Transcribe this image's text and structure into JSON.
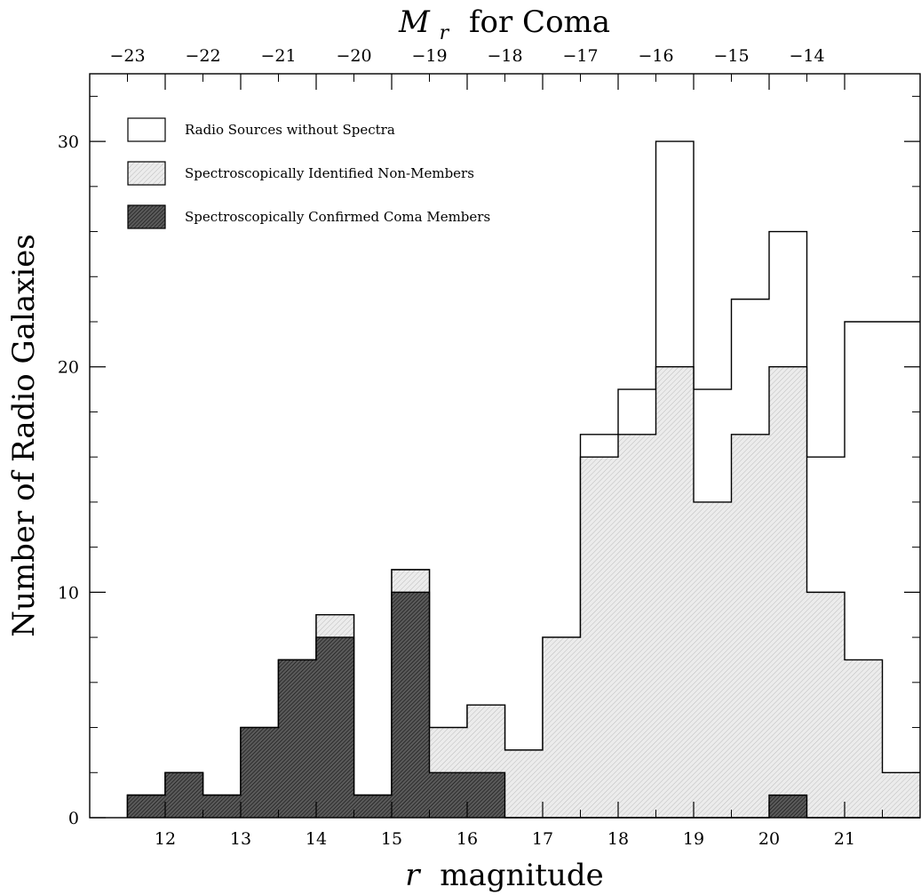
{
  "chart_data": {
    "type": "histogram",
    "xlabel_italic": "r",
    "xlabel_rest": "magnitude",
    "ylabel": "Number of Radio Galaxies",
    "top_label_italic": "M",
    "top_label_sub": "r",
    "top_label_rest": "for Coma",
    "xlim": [
      11,
      22
    ],
    "ylim": [
      0,
      33
    ],
    "x_ticks": [
      12,
      13,
      14,
      15,
      16,
      17,
      18,
      19,
      20,
      21
    ],
    "y_ticks": [
      0,
      10,
      20,
      30
    ],
    "top_ticks": [
      "−23",
      "−22",
      "−21",
      "−20",
      "−19",
      "−18",
      "−17",
      "−16",
      "−15",
      "−14"
    ],
    "top_tick_positions_r": [
      11.5,
      12.5,
      13.5,
      14.5,
      15.5,
      16.5,
      17.5,
      18.5,
      19.5,
      20.5
    ],
    "bin_edges": [
      11.5,
      12.0,
      12.5,
      13.0,
      13.5,
      14.0,
      14.5,
      15.0,
      15.5,
      16.0,
      16.5,
      17.0,
      17.5,
      18.0,
      18.5,
      19.0,
      19.5,
      20.0,
      20.5,
      21.0,
      21.5,
      22.0
    ],
    "series": [
      {
        "name": "Radio Sources without Spectra",
        "fill": "#ffffff",
        "values": [
          1,
          2,
          1,
          4,
          7,
          9,
          1,
          11,
          4,
          5,
          3,
          8,
          17,
          19,
          30,
          19,
          23,
          26,
          16,
          22,
          22
        ]
      },
      {
        "name": "Spectroscopically Identified Non-Members",
        "fill": "#e6e6e6",
        "values": [
          1,
          2,
          1,
          4,
          7,
          9,
          1,
          11,
          4,
          5,
          3,
          8,
          16,
          17,
          20,
          14,
          17,
          20,
          10,
          7,
          2
        ]
      },
      {
        "name": "Spectroscopically Confirmed Coma Members",
        "fill": "#4a4a4a",
        "values": [
          1,
          2,
          1,
          4,
          7,
          8,
          1,
          10,
          2,
          2,
          0,
          0,
          0,
          0,
          0,
          0,
          0,
          1,
          0,
          0,
          0
        ]
      }
    ]
  }
}
